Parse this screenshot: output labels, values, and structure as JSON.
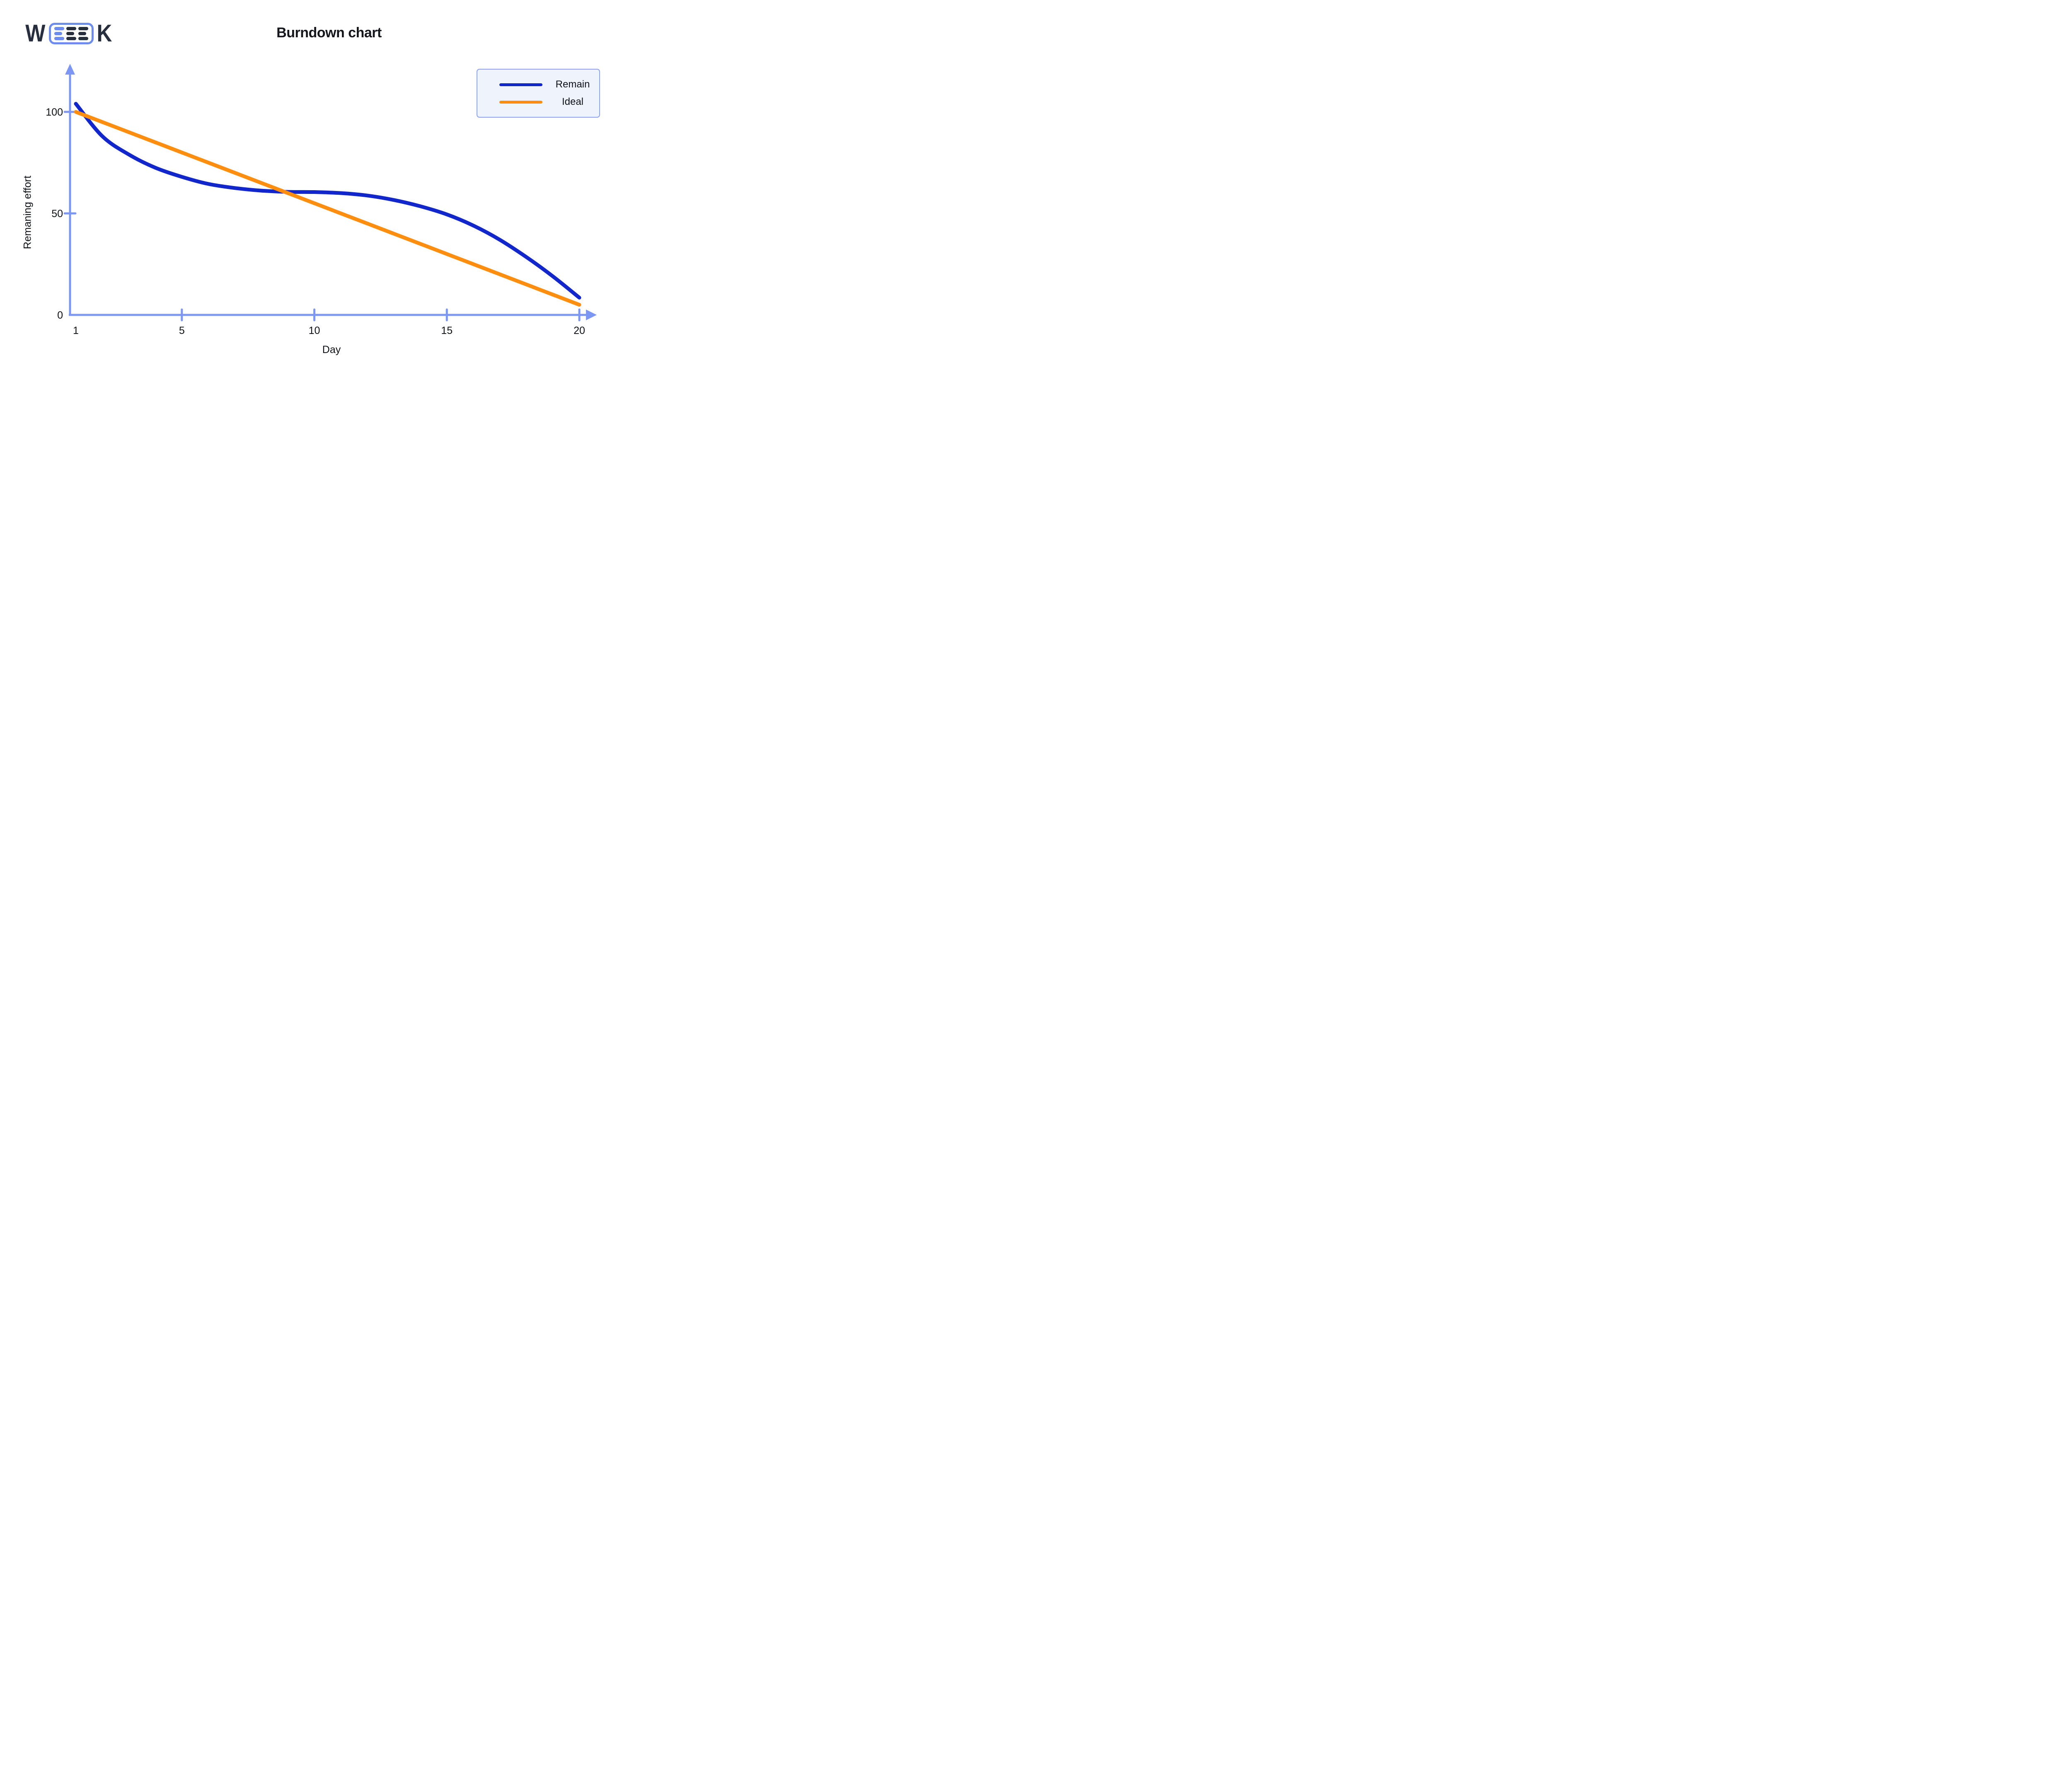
{
  "page": {
    "background": "#ffffff"
  },
  "logo": {
    "left_letter": "W",
    "right_letter": "K",
    "accent_color": "#6C8CF0",
    "dark_color": "#272E3D"
  },
  "chart_data": {
    "type": "line",
    "title": "Burndown chart",
    "xlabel": "Day",
    "ylabel": "Remaning effort",
    "x": [
      1,
      2,
      3,
      4,
      5,
      6,
      7,
      8,
      9,
      10,
      11,
      12,
      13,
      14,
      15,
      16,
      17,
      18,
      19,
      20
    ],
    "xlim": [
      1,
      20
    ],
    "ylim": [
      0,
      110
    ],
    "grid": false,
    "axis_color": "#7C97F3",
    "text_color": "#0E1116",
    "xticks": [
      {
        "value": 1,
        "label": "1",
        "dash": false
      },
      {
        "value": 5,
        "label": "5",
        "dash": true
      },
      {
        "value": 10,
        "label": "10",
        "dash": true
      },
      {
        "value": 15,
        "label": "15",
        "dash": true
      },
      {
        "value": 20,
        "label": "20",
        "dash": true
      }
    ],
    "yticks": [
      {
        "value": 0,
        "label": "0",
        "dash": false
      },
      {
        "value": 50,
        "label": "50",
        "dash": true
      },
      {
        "value": 100,
        "label": "100",
        "dash": true
      }
    ],
    "legend": {
      "position": "top-right",
      "background": "#EFF3FC",
      "border_color": "#8CA5F2"
    },
    "series": [
      {
        "name": "Remain",
        "color": "#1126CB",
        "values": [
          104,
          88,
          79,
          72.5,
          68,
          64.5,
          62.5,
          61.2,
          60.6,
          60.5,
          60,
          58.8,
          56.6,
          53.5,
          49.5,
          44,
          37,
          28.5,
          19,
          8.5
        ]
      },
      {
        "name": "Ideal",
        "color": "#FF8E0E",
        "values": [
          100,
          95,
          90,
          85,
          80,
          75,
          70,
          65,
          60,
          55,
          50,
          45,
          40,
          35,
          30,
          25,
          20,
          15,
          10,
          5
        ]
      }
    ]
  }
}
